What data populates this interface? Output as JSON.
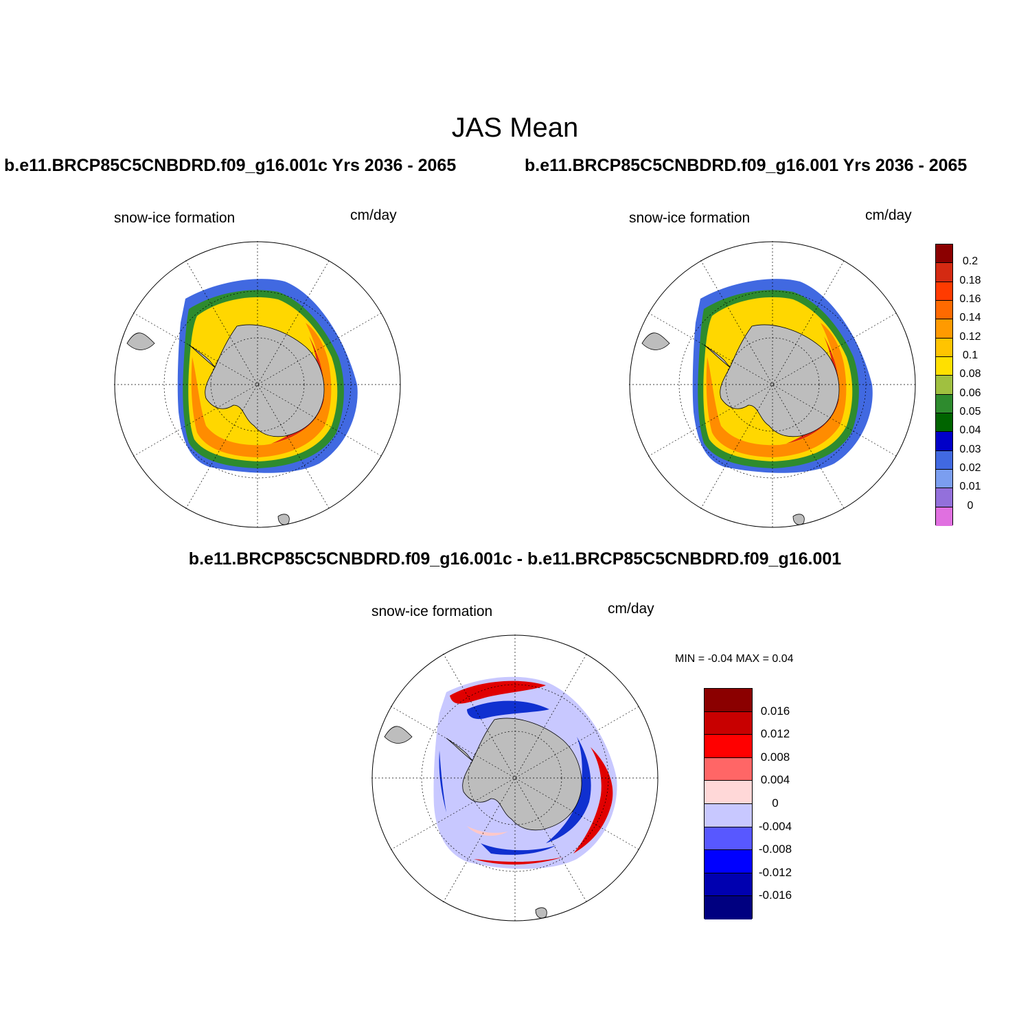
{
  "figure": {
    "title": "JAS Mean",
    "case1_title": "b.e11.BRCP85C5CNBDRD.f09_g16.001c  Yrs 2036 - 2065",
    "case2_title": "b.e11.BRCP85C5CNBDRD.f09_g16.001  Yrs 2036 - 2065",
    "diff_title": "b.e11.BRCP85C5CNBDRD.f09_g16.001c - b.e11.BRCP85C5CNBDRD.f09_g16.001"
  },
  "panels": {
    "case1": {
      "variable": "snow-ice formation",
      "units": "cm/day"
    },
    "case2": {
      "variable": "snow-ice formation",
      "units": "cm/day"
    },
    "diff": {
      "variable": "snow-ice formation",
      "units": "cm/day",
      "minmax": "MIN =  -0.04 MAX =   0.04"
    }
  },
  "colorbar_main": {
    "labels": [
      "0.2",
      "0.18",
      "0.16",
      "0.14",
      "0.12",
      "0.1",
      "0.08",
      "0.06",
      "0.05",
      "0.04",
      "0.03",
      "0.02",
      "0.01",
      "0"
    ],
    "colors": [
      "#8b0000",
      "#d42a12",
      "#ff3b00",
      "#ff6a00",
      "#ff9a00",
      "#ffc400",
      "#ffe000",
      "#a0c040",
      "#2e8b2e",
      "#006400",
      "#0000c8",
      "#4169e1",
      "#7b9ef0",
      "#9370db",
      "#e070e0"
    ]
  },
  "colorbar_diff": {
    "labels": [
      "0.016",
      "0.012",
      "0.008",
      "0.004",
      "0",
      "-0.004",
      "-0.008",
      "-0.012",
      "-0.016"
    ],
    "colors": [
      "#8b0000",
      "#c80000",
      "#ff0000",
      "#ff6666",
      "#ffd8d8",
      "#c8c8ff",
      "#5858ff",
      "#0000ff",
      "#0000b0",
      "#000080"
    ]
  },
  "map_colors": {
    "land": "#bdbdbd",
    "ocean": "#ffffff",
    "outer_ice": "#4169e1",
    "mid_ice_green": "#2e8b2e",
    "inner_yellow": "#ffd700",
    "inner_orange": "#ff8c00",
    "inner_red": "#e02a10",
    "diff_red": "#e00000",
    "diff_blue": "#1030d0",
    "diff_light_blue": "#c8c8ff",
    "diff_pink": "#ffc8c8"
  }
}
